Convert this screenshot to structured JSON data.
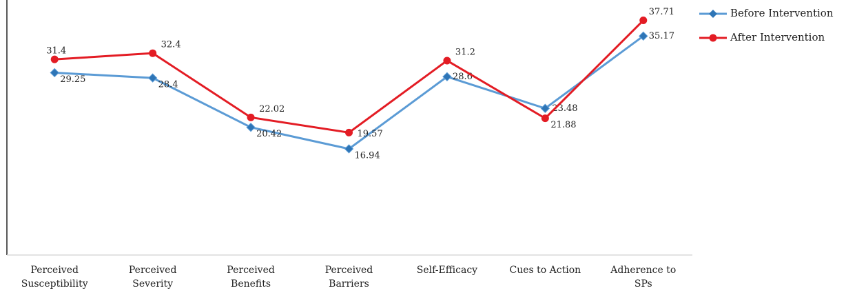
{
  "chart_data": {
    "type": "line",
    "categories": [
      "Perceived Susceptibility",
      "Perceived Severity",
      "Perceived Benefits",
      "Perceived Barriers",
      "Self-Efficacy",
      "Cues to Action",
      "Adherence to SPs"
    ],
    "series": [
      {
        "name": "Before Intervention",
        "color": "#5b9bd5",
        "values": [
          29.25,
          28.4,
          20.42,
          16.94,
          28.6,
          23.48,
          35.17
        ]
      },
      {
        "name": "After Intervention",
        "color": "#e31c24",
        "values": [
          31.4,
          32.4,
          22.02,
          19.57,
          31.2,
          21.88,
          37.71
        ]
      }
    ],
    "ylim": [
      0,
      41
    ],
    "legend": "top-right"
  }
}
